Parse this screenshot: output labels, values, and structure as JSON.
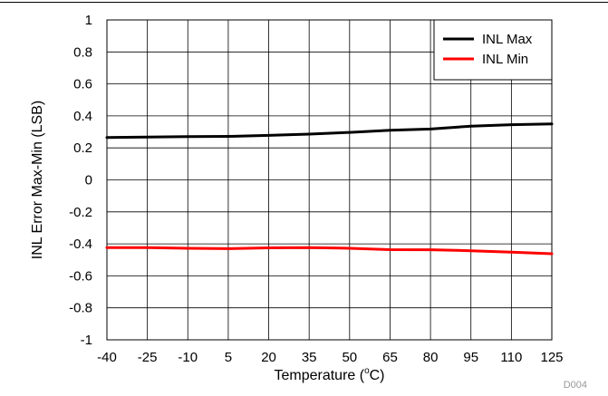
{
  "chart_data": {
    "type": "line",
    "title": "",
    "xlabel": "Temperature (",
    "xlabel_sup": "o",
    "xlabel_tail": "C)",
    "ylabel": "INL Error Max-Min (LSB)",
    "xlim": [
      -40,
      125
    ],
    "ylim": [
      -1,
      1
    ],
    "x_ticks": [
      -40,
      -25,
      -10,
      5,
      20,
      35,
      50,
      65,
      80,
      95,
      110,
      125
    ],
    "y_ticks": [
      -1,
      -0.8,
      -0.6,
      -0.4,
      -0.2,
      0,
      0.2,
      0.4,
      0.6,
      0.8,
      1
    ],
    "grid": true,
    "legend_position": "top-right",
    "x": [
      -40,
      -25,
      -10,
      5,
      20,
      35,
      50,
      65,
      80,
      95,
      110,
      125
    ],
    "series": [
      {
        "name": "INL Max",
        "color": "#000000",
        "values": [
          0.265,
          0.268,
          0.27,
          0.272,
          0.278,
          0.286,
          0.297,
          0.31,
          0.318,
          0.336,
          0.345,
          0.35
        ]
      },
      {
        "name": "INL Min",
        "color": "#ff0000",
        "values": [
          -0.423,
          -0.424,
          -0.428,
          -0.43,
          -0.425,
          -0.423,
          -0.428,
          -0.436,
          -0.437,
          -0.443,
          -0.452,
          -0.462
        ]
      }
    ],
    "footnote": "D004"
  }
}
